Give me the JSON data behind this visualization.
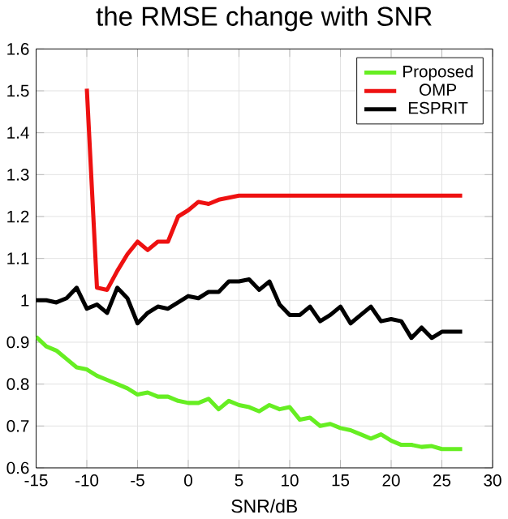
{
  "chart_data": {
    "type": "line",
    "title": "the RMSE change with SNR",
    "xlabel": "SNR/dB",
    "xlim": [
      -15,
      30
    ],
    "xticks": [
      -15,
      -10,
      -5,
      0,
      5,
      10,
      15,
      20,
      25,
      30
    ],
    "ylim": [
      0.6,
      1.6
    ],
    "yticks": [
      0.6,
      0.7,
      0.8,
      0.9,
      1,
      1.1,
      1.2,
      1.3,
      1.4,
      1.5,
      1.6
    ],
    "grid": true,
    "legend": "top right",
    "line_style": "solid",
    "marker": "none",
    "series": [
      {
        "name": "Proposed",
        "color": "#66ee22",
        "x": [
          -15,
          -14,
          -13,
          -12,
          -11,
          -10,
          -9,
          -8,
          -7,
          -6,
          -5,
          -4,
          -3,
          -2,
          -1,
          0,
          1,
          2,
          3,
          4,
          5,
          6,
          7,
          8,
          9,
          10,
          11,
          12,
          13,
          14,
          15,
          16,
          17,
          18,
          19,
          20,
          21,
          22,
          23,
          24,
          25,
          26,
          27
        ],
        "values": [
          0.913,
          0.89,
          0.88,
          0.86,
          0.84,
          0.835,
          0.82,
          0.81,
          0.8,
          0.79,
          0.775,
          0.78,
          0.77,
          0.77,
          0.76,
          0.755,
          0.755,
          0.765,
          0.74,
          0.76,
          0.75,
          0.745,
          0.735,
          0.75,
          0.74,
          0.745,
          0.715,
          0.72,
          0.7,
          0.705,
          0.695,
          0.69,
          0.68,
          0.67,
          0.68,
          0.665,
          0.655,
          0.655,
          0.65,
          0.652,
          0.645,
          0.645,
          0.645
        ]
      },
      {
        "name": "OMP",
        "color": "#ee1111",
        "x": [
          -10,
          -9,
          -8,
          -7,
          -6,
          -5,
          -4,
          -3,
          -2,
          -1,
          0,
          1,
          2,
          3,
          4,
          5,
          6,
          7,
          8,
          9,
          10,
          11,
          12,
          13,
          14,
          15,
          16,
          17,
          18,
          19,
          20,
          21,
          22,
          23,
          24,
          25,
          26,
          27
        ],
        "values": [
          1.505,
          1.03,
          1.025,
          1.07,
          1.11,
          1.14,
          1.12,
          1.14,
          1.14,
          1.2,
          1.215,
          1.235,
          1.23,
          1.24,
          1.245,
          1.25,
          1.25,
          1.25,
          1.25,
          1.25,
          1.25,
          1.25,
          1.25,
          1.25,
          1.25,
          1.25,
          1.25,
          1.25,
          1.25,
          1.25,
          1.25,
          1.25,
          1.25,
          1.25,
          1.25,
          1.25,
          1.25,
          1.25
        ]
      },
      {
        "name": "ESPRIT",
        "color": "#000000",
        "x": [
          -15,
          -14,
          -13,
          -12,
          -11,
          -10,
          -9,
          -8,
          -7,
          -6,
          -5,
          -4,
          -3,
          -2,
          -1,
          0,
          1,
          2,
          3,
          4,
          5,
          6,
          7,
          8,
          9,
          10,
          11,
          12,
          13,
          14,
          15,
          16,
          17,
          18,
          19,
          20,
          21,
          22,
          23,
          24,
          25,
          26,
          27
        ],
        "values": [
          1.0,
          1.0,
          0.995,
          1.005,
          1.03,
          0.98,
          0.99,
          0.97,
          1.03,
          1.005,
          0.945,
          0.97,
          0.985,
          0.98,
          0.995,
          1.01,
          1.005,
          1.02,
          1.02,
          1.045,
          1.045,
          1.05,
          1.025,
          1.045,
          0.99,
          0.965,
          0.965,
          0.985,
          0.95,
          0.965,
          0.985,
          0.945,
          0.965,
          0.985,
          0.95,
          0.955,
          0.95,
          0.91,
          0.935,
          0.91,
          0.925,
          0.925,
          0.925
        ]
      }
    ]
  }
}
